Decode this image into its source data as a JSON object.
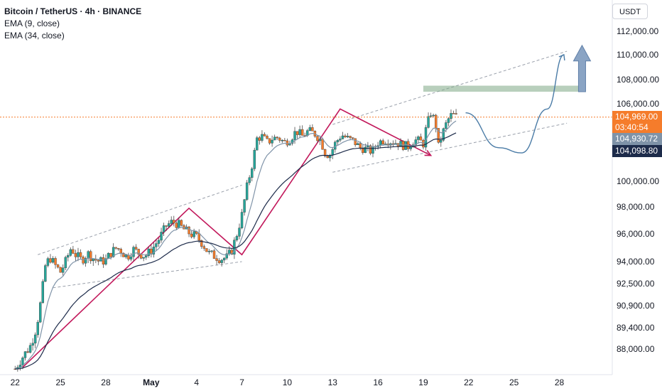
{
  "legend": {
    "title": "Bitcoin / TetherUS · 4h · BINANCE",
    "ema9": "EMA (9, close)",
    "ema34": "EMA (34, close)"
  },
  "currency_button": "USDT",
  "price_tags": {
    "last_price": "104,969.00",
    "countdown": "03:40:54",
    "ema9_value": "104,930.72",
    "ema34_value": "104,098.80"
  },
  "colors": {
    "up": "#26a69a",
    "down": "#f57c2b",
    "pattern": "#c2185b",
    "projection": "#4a7ba6",
    "zone": "#7ea885",
    "ema9": "#7f93a8",
    "ema34": "#1d2b4a"
  },
  "chart_data": {
    "type": "candlestick",
    "title": "Bitcoin / TetherUS · 4h · BINANCE",
    "xlabel": "",
    "ylabel": "",
    "x_tick_labels": [
      "22",
      "25",
      "28",
      "May",
      "4",
      "7",
      "10",
      "13",
      "16",
      "19",
      "22",
      "25",
      "28"
    ],
    "y_tick_labels": [
      "112,000.00",
      "110,000.00",
      "108,000.00",
      "106,000.00",
      "100,000.00",
      "98,000.00",
      "96,000.00",
      "94,000.00",
      "92,500.00",
      "90,900.00",
      "89,400.00",
      "88,000.00"
    ],
    "y_ticks": [
      112000,
      110000,
      108000,
      106000,
      100000,
      98000,
      96000,
      94000,
      92500,
      90900,
      89400,
      88000
    ],
    "x_ticks_day": [
      0,
      3,
      6,
      9,
      12,
      15,
      18,
      21,
      24,
      27,
      30,
      33,
      36
    ],
    "ylim": [
      86300,
      113800
    ],
    "xlim_day": [
      -1,
      39.5
    ],
    "grid": false,
    "last_price": 104969,
    "path": [
      [
        0,
        86700
      ],
      [
        0.3,
        87200
      ],
      [
        1.0,
        88200
      ],
      [
        1.4,
        89400
      ],
      [
        1.7,
        91200
      ],
      [
        2.0,
        93700
      ],
      [
        2.3,
        94300
      ],
      [
        2.6,
        93800
      ],
      [
        3.0,
        93300
      ],
      [
        3.3,
        93900
      ],
      [
        3.7,
        95000
      ],
      [
        4.0,
        94500
      ],
      [
        4.4,
        94100
      ],
      [
        4.8,
        94600
      ],
      [
        5.2,
        94200
      ],
      [
        5.6,
        94000
      ],
      [
        6.0,
        94100
      ],
      [
        6.3,
        94600
      ],
      [
        6.7,
        95000
      ],
      [
        7.0,
        94800
      ],
      [
        7.4,
        94300
      ],
      [
        7.8,
        94900
      ],
      [
        8.2,
        94600
      ],
      [
        8.6,
        94400
      ],
      [
        9.0,
        94800
      ],
      [
        9.5,
        95600
      ],
      [
        10.0,
        96600
      ],
      [
        10.4,
        96900
      ],
      [
        10.8,
        96700
      ],
      [
        11.2,
        96300
      ],
      [
        11.6,
        96000
      ],
      [
        12.0,
        95800
      ],
      [
        12.4,
        95300
      ],
      [
        12.8,
        94600
      ],
      [
        13.2,
        94400
      ],
      [
        13.6,
        94200
      ],
      [
        14.0,
        94300
      ],
      [
        14.3,
        94700
      ],
      [
        14.7,
        96100
      ],
      [
        15.0,
        97400
      ],
      [
        15.3,
        99400
      ],
      [
        15.7,
        101400
      ],
      [
        16.0,
        103300
      ],
      [
        16.3,
        103500
      ],
      [
        16.7,
        103000
      ],
      [
        17.0,
        103300
      ],
      [
        17.4,
        103400
      ],
      [
        17.8,
        103000
      ],
      [
        18.2,
        103300
      ],
      [
        18.6,
        103900
      ],
      [
        19.0,
        103500
      ],
      [
        19.4,
        103900
      ],
      [
        19.8,
        103700
      ],
      [
        20.2,
        103200
      ],
      [
        20.5,
        102200
      ],
      [
        20.8,
        102000
      ],
      [
        21.2,
        103000
      ],
      [
        21.6,
        103600
      ],
      [
        22.0,
        103300
      ],
      [
        22.4,
        103100
      ],
      [
        22.8,
        102600
      ],
      [
        23.2,
        102500
      ],
      [
        23.6,
        102300
      ],
      [
        24.0,
        103000
      ],
      [
        24.4,
        103200
      ],
      [
        24.8,
        103100
      ],
      [
        25.2,
        103000
      ],
      [
        25.6,
        102800
      ],
      [
        26.0,
        102700
      ],
      [
        26.4,
        103200
      ],
      [
        26.8,
        103100
      ],
      [
        27.0,
        102900
      ],
      [
        27.2,
        104200
      ],
      [
        27.5,
        105300
      ],
      [
        27.8,
        104600
      ],
      [
        28.0,
        102700
      ],
      [
        28.3,
        103800
      ],
      [
        28.6,
        104700
      ],
      [
        28.9,
        105200
      ],
      [
        29.2,
        104970
      ]
    ],
    "annotations": [
      {
        "type": "channel",
        "upper": [
          [
            1.5,
            94500
          ],
          [
            15,
            99700
          ]
        ],
        "lower": [
          [
            2.5,
            92200
          ],
          [
            15,
            94000
          ]
        ]
      },
      {
        "type": "channel",
        "upper": [
          [
            21,
            104400
          ],
          [
            36.5,
            110300
          ]
        ],
        "lower": [
          [
            21,
            100700
          ],
          [
            36.5,
            104500
          ]
        ]
      },
      {
        "type": "zigzag",
        "points": [
          [
            0.5,
            86800
          ],
          [
            11.5,
            97900
          ],
          [
            15.0,
            94500
          ],
          [
            21.5,
            105600
          ],
          [
            27.5,
            102000
          ]
        ]
      },
      {
        "type": "zone",
        "x": [
          27,
          37.5
        ],
        "y": [
          107000,
          107500
        ]
      },
      {
        "type": "projection",
        "points": [
          [
            29.8,
            105300
          ],
          [
            32.0,
            102600
          ],
          [
            33.5,
            102200
          ],
          [
            35.2,
            105600
          ],
          [
            36.3,
            110000
          ]
        ]
      },
      {
        "type": "target-arrow",
        "from": [
          37.5,
          107000
        ],
        "to": [
          37.5,
          110800
        ]
      }
    ]
  }
}
